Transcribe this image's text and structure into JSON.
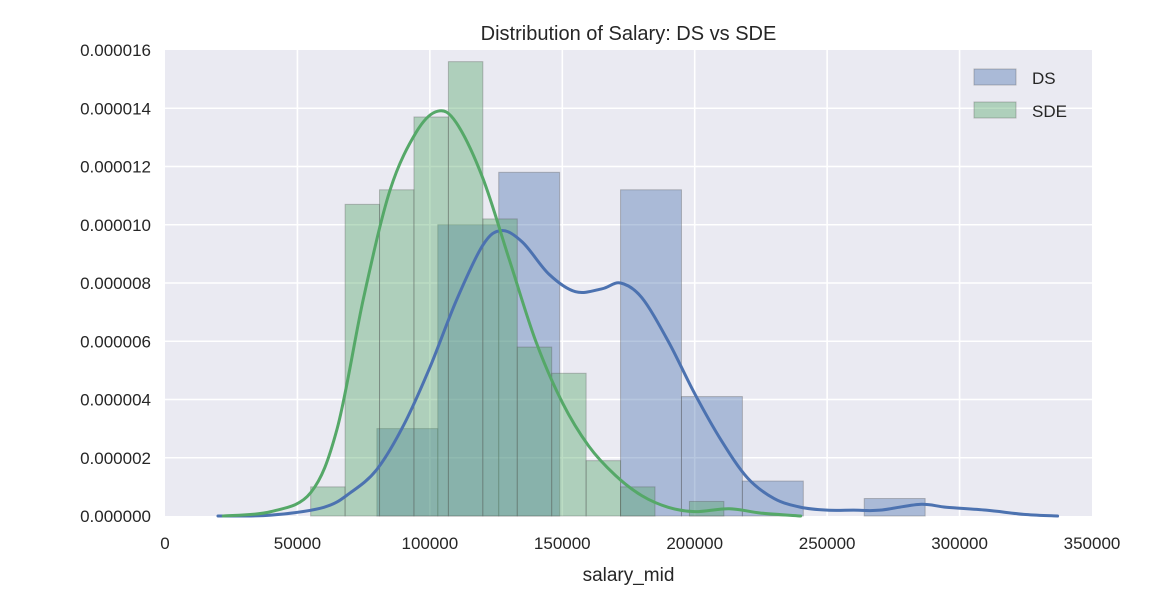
{
  "chart_data": {
    "type": "histogram",
    "title": "Distribution of Salary: DS vs SDE",
    "xlabel": "salary_mid",
    "ylabel": "",
    "xlim": [
      0,
      350000
    ],
    "ylim": [
      0,
      1.6e-05
    ],
    "xticks": [
      0,
      50000,
      100000,
      150000,
      200000,
      250000,
      300000,
      350000
    ],
    "xtick_labels": [
      "0",
      "50000",
      "100000",
      "150000",
      "200000",
      "250000",
      "300000",
      "350000"
    ],
    "yticks": [
      0,
      2e-06,
      4e-06,
      6e-06,
      8e-06,
      1e-05,
      1.2e-05,
      1.4e-05,
      1.6e-05
    ],
    "ytick_labels": [
      "0.000000",
      "0.000002",
      "0.000004",
      "0.000006",
      "0.000008",
      "0.000010",
      "0.000012",
      "0.000014",
      "0.000016"
    ],
    "grid": true,
    "legend_position": "top-right",
    "series": [
      {
        "name": "DS",
        "color": "#4c72b0",
        "bins": [
          {
            "x0": 80000,
            "x1": 103000,
            "density": 3e-06
          },
          {
            "x0": 103000,
            "x1": 126000,
            "density": 1e-05
          },
          {
            "x0": 126000,
            "x1": 149000,
            "density": 1.18e-05
          },
          {
            "x0": 149000,
            "x1": 172000,
            "density": 0.0
          },
          {
            "x0": 172000,
            "x1": 195000,
            "density": 1.12e-05
          },
          {
            "x0": 195000,
            "x1": 218000,
            "density": 4.1e-06
          },
          {
            "x0": 218000,
            "x1": 241000,
            "density": 1.2e-06
          },
          {
            "x0": 241000,
            "x1": 264000,
            "density": 0.0
          },
          {
            "x0": 264000,
            "x1": 287000,
            "density": 6e-07
          }
        ],
        "kde": [
          [
            20000,
            0.0
          ],
          [
            40000,
            3e-08
          ],
          [
            60000,
            3e-07
          ],
          [
            70000,
            8e-07
          ],
          [
            80000,
            1.6e-06
          ],
          [
            90000,
            3.1e-06
          ],
          [
            100000,
            5.1e-06
          ],
          [
            110000,
            7.4e-06
          ],
          [
            120000,
            9.3e-06
          ],
          [
            127000,
            9.8e-06
          ],
          [
            135000,
            9.4e-06
          ],
          [
            145000,
            8.3e-06
          ],
          [
            155000,
            7.7e-06
          ],
          [
            165000,
            7.8e-06
          ],
          [
            172000,
            8e-06
          ],
          [
            180000,
            7.5e-06
          ],
          [
            190000,
            6e-06
          ],
          [
            200000,
            4.2e-06
          ],
          [
            210000,
            2.6e-06
          ],
          [
            220000,
            1.3e-06
          ],
          [
            230000,
            6e-07
          ],
          [
            240000,
            3e-07
          ],
          [
            250000,
            2e-07
          ],
          [
            260000,
            2e-07
          ],
          [
            270000,
            2e-07
          ],
          [
            285000,
            4e-07
          ],
          [
            295000,
            3e-07
          ],
          [
            310000,
            2e-07
          ],
          [
            325000,
            5e-08
          ],
          [
            337000,
            0.0
          ]
        ]
      },
      {
        "name": "SDE",
        "color": "#55a868",
        "bins": [
          {
            "x0": 55000,
            "x1": 68000,
            "density": 1e-06
          },
          {
            "x0": 68000,
            "x1": 81000,
            "density": 1.07e-05
          },
          {
            "x0": 81000,
            "x1": 94000,
            "density": 1.12e-05
          },
          {
            "x0": 94000,
            "x1": 107000,
            "density": 1.37e-05
          },
          {
            "x0": 107000,
            "x1": 120000,
            "density": 1.56e-05
          },
          {
            "x0": 120000,
            "x1": 133000,
            "density": 1.02e-05
          },
          {
            "x0": 133000,
            "x1": 146000,
            "density": 5.8e-06
          },
          {
            "x0": 146000,
            "x1": 159000,
            "density": 4.9e-06
          },
          {
            "x0": 159000,
            "x1": 172000,
            "density": 1.9e-06
          },
          {
            "x0": 172000,
            "x1": 185000,
            "density": 1e-06
          },
          {
            "x0": 185000,
            "x1": 198000,
            "density": 0.0
          },
          {
            "x0": 198000,
            "x1": 211000,
            "density": 5e-07
          }
        ],
        "kde": [
          [
            22000,
            0.0
          ],
          [
            40000,
            1.5e-07
          ],
          [
            55000,
            8e-07
          ],
          [
            65000,
            3e-06
          ],
          [
            75000,
            7.5e-06
          ],
          [
            85000,
            1.12e-05
          ],
          [
            95000,
            1.32e-05
          ],
          [
            103000,
            1.39e-05
          ],
          [
            110000,
            1.35e-05
          ],
          [
            120000,
            1.16e-05
          ],
          [
            130000,
            8.8e-06
          ],
          [
            140000,
            6e-06
          ],
          [
            150000,
            3.9e-06
          ],
          [
            160000,
            2.4e-06
          ],
          [
            170000,
            1.4e-06
          ],
          [
            180000,
            7e-07
          ],
          [
            190000,
            3e-07
          ],
          [
            200000,
            1.5e-07
          ],
          [
            213000,
            2.5e-07
          ],
          [
            225000,
            1e-07
          ],
          [
            240000,
            0.0
          ]
        ]
      }
    ]
  }
}
